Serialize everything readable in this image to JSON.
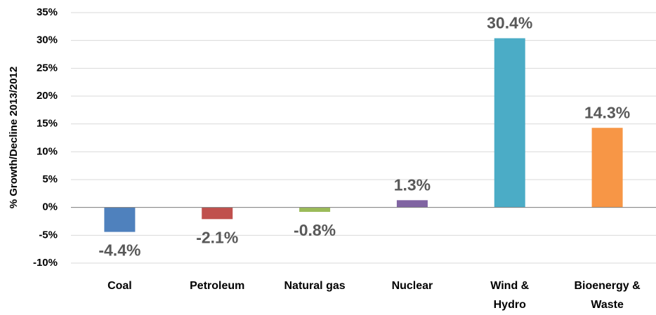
{
  "chart_data": {
    "type": "bar",
    "y_axis_label": "% Growth/Decline 2013/2012",
    "categories": [
      "Coal",
      "Petroleum",
      "Natural gas",
      "Nuclear",
      "Wind & Hydro",
      "Bioenergy & Waste"
    ],
    "values": [
      -4.4,
      -2.1,
      -0.8,
      1.3,
      30.4,
      14.3
    ],
    "value_labels": [
      "-4.4%",
      "-2.1%",
      "-0.8%",
      "1.3%",
      "30.4%",
      "14.3%"
    ],
    "colors": [
      "#4f81bd",
      "#c0504d",
      "#9bbb59",
      "#8064a2",
      "#4bacc6",
      "#f79646"
    ],
    "ylim": [
      -10,
      35
    ],
    "yticks": [
      {
        "value": -10,
        "label": "-10%"
      },
      {
        "value": -5,
        "label": "-5%"
      },
      {
        "value": 0,
        "label": "0%"
      },
      {
        "value": 5,
        "label": "5%"
      },
      {
        "value": 10,
        "label": "10%"
      },
      {
        "value": 15,
        "label": "15%"
      },
      {
        "value": 20,
        "label": "20%"
      },
      {
        "value": 25,
        "label": "25%"
      },
      {
        "value": 30,
        "label": "30%"
      },
      {
        "value": 35,
        "label": "35%"
      }
    ],
    "grid": true
  }
}
